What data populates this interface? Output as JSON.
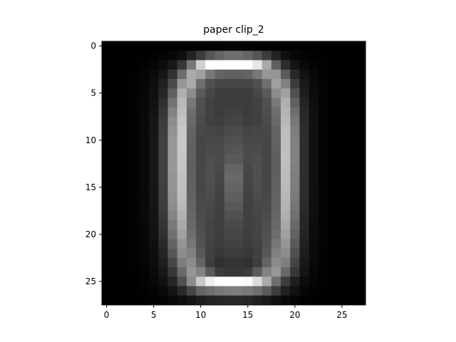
{
  "chart_data": {
    "type": "heatmap",
    "title": "paper clip_2",
    "xlabel": "",
    "ylabel": "",
    "colormap": "gray",
    "grid": false,
    "rows": 28,
    "cols": 28,
    "x_ticks": [
      0,
      5,
      10,
      15,
      20,
      25
    ],
    "y_ticks": [
      0,
      5,
      10,
      15,
      20,
      25
    ],
    "xlim": [
      -0.5,
      27.5
    ],
    "ylim": [
      27.5,
      -0.5
    ],
    "value_range": [
      0,
      255
    ],
    "values": [
      [
        0,
        0,
        0,
        0,
        0,
        0,
        0,
        0,
        0,
        0,
        0,
        1,
        2,
        3,
        3,
        2,
        1,
        0,
        0,
        0,
        0,
        0,
        0,
        0,
        0,
        0,
        0,
        0
      ],
      [
        0,
        0,
        0,
        0,
        1,
        2,
        4,
        8,
        15,
        35,
        60,
        85,
        100,
        110,
        110,
        100,
        85,
        60,
        35,
        15,
        8,
        4,
        2,
        1,
        0,
        0,
        0,
        0
      ],
      [
        0,
        0,
        0,
        1,
        3,
        6,
        12,
        25,
        55,
        120,
        210,
        255,
        255,
        255,
        255,
        255,
        230,
        170,
        95,
        45,
        20,
        10,
        5,
        2,
        1,
        0,
        0,
        0
      ],
      [
        0,
        0,
        1,
        2,
        5,
        10,
        22,
        50,
        110,
        170,
        160,
        120,
        100,
        95,
        95,
        100,
        120,
        150,
        150,
        90,
        40,
        18,
        8,
        3,
        1,
        0,
        0,
        0
      ],
      [
        0,
        0,
        1,
        3,
        6,
        14,
        32,
        75,
        150,
        170,
        110,
        80,
        70,
        70,
        70,
        70,
        80,
        110,
        160,
        130,
        60,
        25,
        10,
        4,
        1,
        0,
        0,
        0
      ],
      [
        0,
        0,
        1,
        3,
        7,
        16,
        40,
        95,
        175,
        140,
        90,
        70,
        60,
        60,
        60,
        60,
        70,
        90,
        140,
        160,
        80,
        30,
        12,
        4,
        1,
        0,
        0,
        0
      ],
      [
        0,
        0,
        1,
        3,
        8,
        18,
        48,
        115,
        185,
        120,
        80,
        65,
        60,
        62,
        62,
        60,
        65,
        80,
        120,
        175,
        95,
        35,
        14,
        5,
        1,
        0,
        0,
        0
      ],
      [
        0,
        0,
        1,
        3,
        8,
        20,
        55,
        130,
        190,
        110,
        78,
        65,
        60,
        65,
        65,
        60,
        65,
        78,
        110,
        180,
        110,
        40,
        15,
        5,
        1,
        0,
        0,
        0
      ],
      [
        0,
        0,
        1,
        3,
        8,
        22,
        60,
        140,
        195,
        105,
        75,
        65,
        62,
        68,
        68,
        62,
        65,
        75,
        105,
        185,
        120,
        42,
        16,
        5,
        1,
        0,
        0,
        0
      ],
      [
        0,
        0,
        1,
        3,
        9,
        22,
        62,
        145,
        200,
        100,
        72,
        70,
        68,
        75,
        75,
        68,
        70,
        72,
        100,
        190,
        125,
        45,
        16,
        5,
        1,
        0,
        0,
        0
      ],
      [
        0,
        0,
        1,
        3,
        9,
        23,
        64,
        150,
        200,
        98,
        70,
        72,
        72,
        80,
        80,
        72,
        72,
        70,
        98,
        190,
        128,
        46,
        16,
        5,
        1,
        0,
        0,
        0
      ],
      [
        0,
        0,
        1,
        3,
        9,
        23,
        65,
        152,
        200,
        96,
        70,
        75,
        75,
        85,
        85,
        75,
        75,
        70,
        96,
        192,
        130,
        46,
        16,
        5,
        1,
        0,
        0,
        0
      ],
      [
        0,
        0,
        1,
        3,
        9,
        23,
        65,
        152,
        198,
        95,
        70,
        78,
        75,
        90,
        90,
        75,
        78,
        70,
        95,
        192,
        130,
        46,
        16,
        5,
        1,
        0,
        0,
        0
      ],
      [
        0,
        0,
        1,
        3,
        9,
        23,
        65,
        152,
        196,
        95,
        70,
        80,
        72,
        100,
        100,
        72,
        80,
        70,
        95,
        190,
        128,
        46,
        16,
        5,
        1,
        0,
        0,
        0
      ],
      [
        0,
        0,
        1,
        3,
        9,
        23,
        64,
        150,
        194,
        96,
        70,
        80,
        70,
        105,
        105,
        70,
        80,
        70,
        96,
        188,
        126,
        45,
        16,
        5,
        1,
        0,
        0,
        0
      ],
      [
        0,
        0,
        1,
        3,
        9,
        22,
        63,
        148,
        192,
        97,
        70,
        78,
        68,
        100,
        100,
        68,
        78,
        70,
        97,
        186,
        124,
        44,
        15,
        5,
        1,
        0,
        0,
        0
      ],
      [
        0,
        0,
        1,
        3,
        8,
        22,
        62,
        145,
        190,
        98,
        72,
        76,
        66,
        95,
        95,
        66,
        76,
        72,
        98,
        184,
        122,
        44,
        15,
        5,
        1,
        0,
        0,
        0
      ],
      [
        0,
        0,
        1,
        3,
        8,
        21,
        60,
        140,
        185,
        100,
        74,
        72,
        64,
        88,
        88,
        64,
        72,
        74,
        100,
        180,
        118,
        42,
        15,
        5,
        1,
        0,
        0,
        0
      ],
      [
        0,
        0,
        1,
        3,
        8,
        20,
        56,
        132,
        178,
        102,
        76,
        70,
        64,
        80,
        80,
        64,
        70,
        76,
        102,
        175,
        112,
        40,
        14,
        5,
        1,
        0,
        0,
        0
      ],
      [
        0,
        0,
        1,
        3,
        8,
        19,
        52,
        122,
        170,
        105,
        78,
        68,
        64,
        74,
        74,
        64,
        68,
        78,
        105,
        168,
        105,
        38,
        13,
        4,
        1,
        0,
        0,
        0
      ],
      [
        0,
        0,
        1,
        3,
        7,
        18,
        48,
        112,
        160,
        110,
        80,
        68,
        62,
        70,
        70,
        62,
        68,
        80,
        110,
        160,
        98,
        35,
        12,
        4,
        1,
        0,
        0,
        0
      ],
      [
        0,
        0,
        1,
        2,
        7,
        16,
        42,
        100,
        150,
        118,
        82,
        66,
        60,
        66,
        66,
        60,
        66,
        82,
        118,
        150,
        90,
        32,
        11,
        4,
        1,
        0,
        0,
        0
      ],
      [
        0,
        0,
        1,
        2,
        6,
        14,
        36,
        86,
        140,
        128,
        88,
        64,
        56,
        60,
        60,
        56,
        64,
        88,
        128,
        140,
        80,
        28,
        10,
        3,
        1,
        0,
        0,
        0
      ],
      [
        0,
        0,
        1,
        2,
        5,
        12,
        30,
        70,
        125,
        140,
        100,
        62,
        48,
        52,
        52,
        48,
        62,
        100,
        140,
        125,
        68,
        24,
        9,
        3,
        1,
        0,
        0,
        0
      ],
      [
        0,
        0,
        0,
        2,
        4,
        10,
        24,
        55,
        105,
        150,
        130,
        90,
        60,
        55,
        55,
        60,
        90,
        130,
        150,
        105,
        55,
        20,
        7,
        2,
        1,
        0,
        0,
        0
      ],
      [
        0,
        0,
        0,
        1,
        3,
        7,
        16,
        38,
        80,
        140,
        200,
        240,
        255,
        255,
        255,
        250,
        220,
        170,
        110,
        60,
        30,
        12,
        5,
        2,
        0,
        0,
        0,
        0
      ],
      [
        0,
        0,
        0,
        1,
        2,
        4,
        9,
        20,
        40,
        70,
        100,
        110,
        120,
        125,
        125,
        120,
        110,
        90,
        60,
        32,
        16,
        7,
        3,
        1,
        0,
        0,
        0,
        0
      ],
      [
        0,
        0,
        0,
        0,
        1,
        2,
        4,
        8,
        14,
        22,
        30,
        35,
        38,
        40,
        40,
        38,
        32,
        25,
        16,
        9,
        5,
        2,
        1,
        0,
        0,
        0,
        0,
        0
      ]
    ]
  }
}
